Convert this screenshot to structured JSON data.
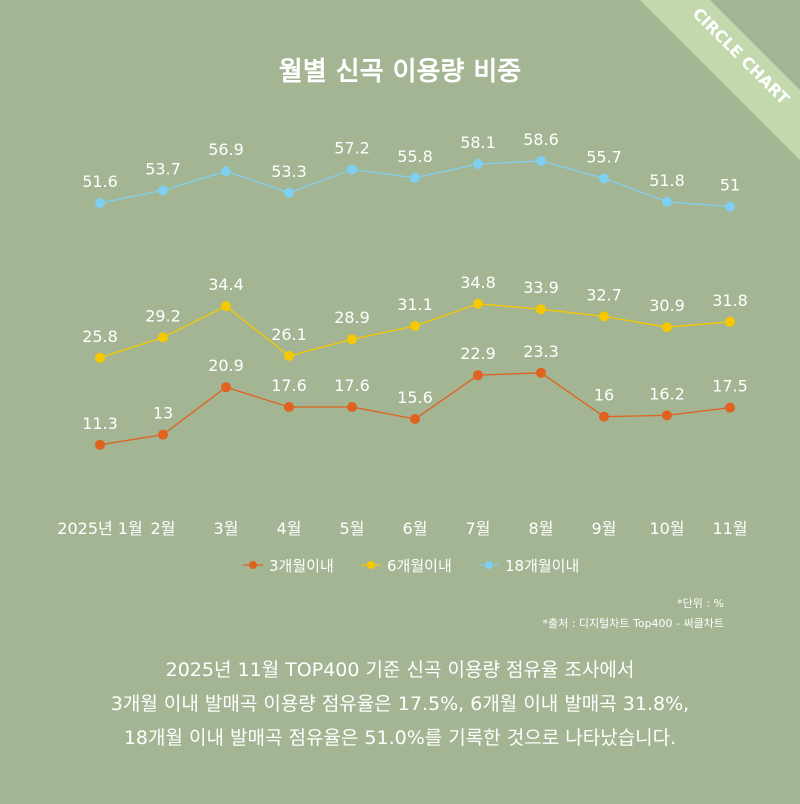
{
  "badge": "CIRCLE CHART",
  "chart_data": {
    "type": "line",
    "title": "월별 신곡 이용량 비중",
    "categories": [
      "2025년 1월",
      "2월",
      "3월",
      "4월",
      "5월",
      "6월",
      "7월",
      "8월",
      "9월",
      "10월",
      "11월"
    ],
    "series": [
      {
        "name": "3개월이내",
        "color": "#e0621e",
        "values": [
          11.3,
          13,
          20.9,
          17.6,
          17.6,
          15.6,
          22.9,
          23.3,
          16,
          16.2,
          17.5
        ]
      },
      {
        "name": "6개월이내",
        "color": "#f5c800",
        "values": [
          25.8,
          29.2,
          34.4,
          26.1,
          28.9,
          31.1,
          34.8,
          33.9,
          32.7,
          30.9,
          31.8
        ]
      },
      {
        "name": "18개월이내",
        "color": "#7fd0f0",
        "values": [
          51.6,
          53.7,
          56.9,
          53.3,
          57.2,
          55.8,
          58.1,
          58.6,
          55.7,
          51.8,
          51
        ]
      }
    ]
  },
  "notes": [
    "*단위 : %",
    "*출처 :  디지털차트 Top400 - 써클차트"
  ],
  "caption": [
    "2025년 11월 TOP400 기준 신곡 이용량 점유율 조사에서",
    "3개월 이내 발매곡 이용량 점유율은 17.5%, 6개월 이내 발매곡 31.8%,",
    "18개월 이내 발매곡 점유율은 51.0%를 기록한 것으로 나타났습니다."
  ]
}
